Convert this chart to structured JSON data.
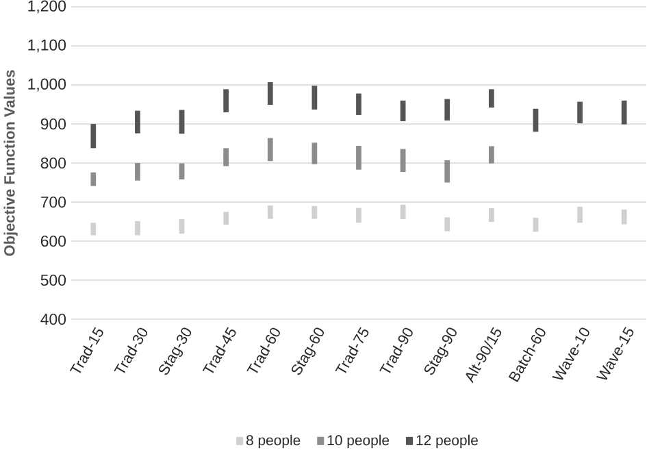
{
  "chart_data": {
    "type": "bar",
    "ylabel": "Objective Function Values",
    "categories": [
      "Trad-15",
      "Trad-30",
      "Stag-30",
      "Trad-45",
      "Trad-60",
      "Stag-60",
      "Trad-75",
      "Trad-90",
      "Stag-90",
      "Alt-90/15",
      "Batch-60",
      "Wave-10",
      "Wave-15"
    ],
    "series": [
      {
        "name": "8 people",
        "color": "#d0d0d0",
        "base": [
          615,
          615,
          619,
          642,
          657,
          657,
          647,
          656,
          625,
          649,
          624,
          647,
          643
        ],
        "values": [
          32,
          36,
          37,
          33,
          34,
          33,
          38,
          37,
          36,
          35,
          36,
          41,
          38
        ]
      },
      {
        "name": "10 people",
        "color": "#8c8c8c",
        "base": [
          741,
          755,
          758,
          792,
          805,
          797,
          783,
          777,
          750,
          799,
          null,
          null,
          null
        ],
        "values": [
          35,
          45,
          41,
          46,
          59,
          55,
          61,
          59,
          57,
          44,
          null,
          null,
          null
        ]
      },
      {
        "name": "12 people",
        "color": "#555555",
        "base": [
          838,
          876,
          875,
          930,
          949,
          937,
          923,
          907,
          909,
          942,
          880,
          902,
          899
        ],
        "values": [
          62,
          58,
          61,
          59,
          58,
          61,
          55,
          53,
          55,
          47,
          59,
          55,
          61
        ]
      }
    ],
    "ylim": [
      400,
      1200
    ],
    "yticks": [
      400,
      500,
      600,
      700,
      800,
      900,
      {
        "value": 1000,
        "label": "1,000"
      },
      {
        "value": 1100,
        "label": "1,100"
      },
      {
        "value": 1200,
        "label": "1,200"
      }
    ],
    "grid": "y",
    "legend": "bottom"
  }
}
